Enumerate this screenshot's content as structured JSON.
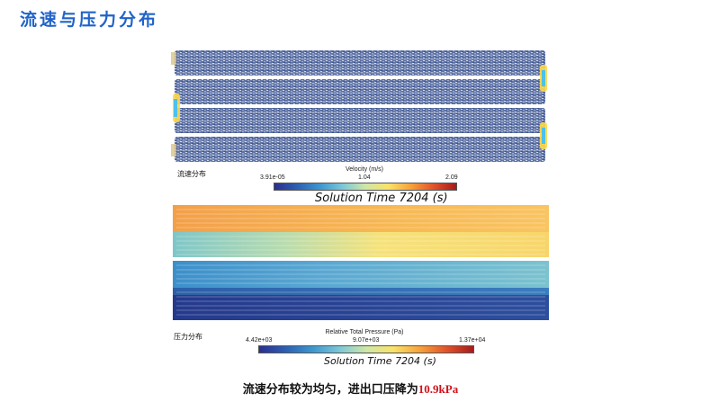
{
  "title": "流速与压力分布",
  "velocity": {
    "side_label": "流速分布",
    "colorbar_title": "Velocity (m/s)",
    "ticks": [
      "3.91e-05",
      "1.04",
      "2.09"
    ],
    "solution_time": "Solution Time 7204 (s)"
  },
  "pressure": {
    "side_label": "压力分布",
    "colorbar_title": "Relative Total Pressure (Pa)",
    "ticks": [
      "4.42e+03",
      "9.07e+03",
      "1.37e+04"
    ],
    "solution_time": "Solution Time 7204 (s)"
  },
  "conclusion": {
    "text": "流速分布较为均匀，进出口压降为",
    "highlight": "10.9kPa"
  },
  "colors": {
    "title": "#1f63c9",
    "highlight": "#d0121b"
  }
}
